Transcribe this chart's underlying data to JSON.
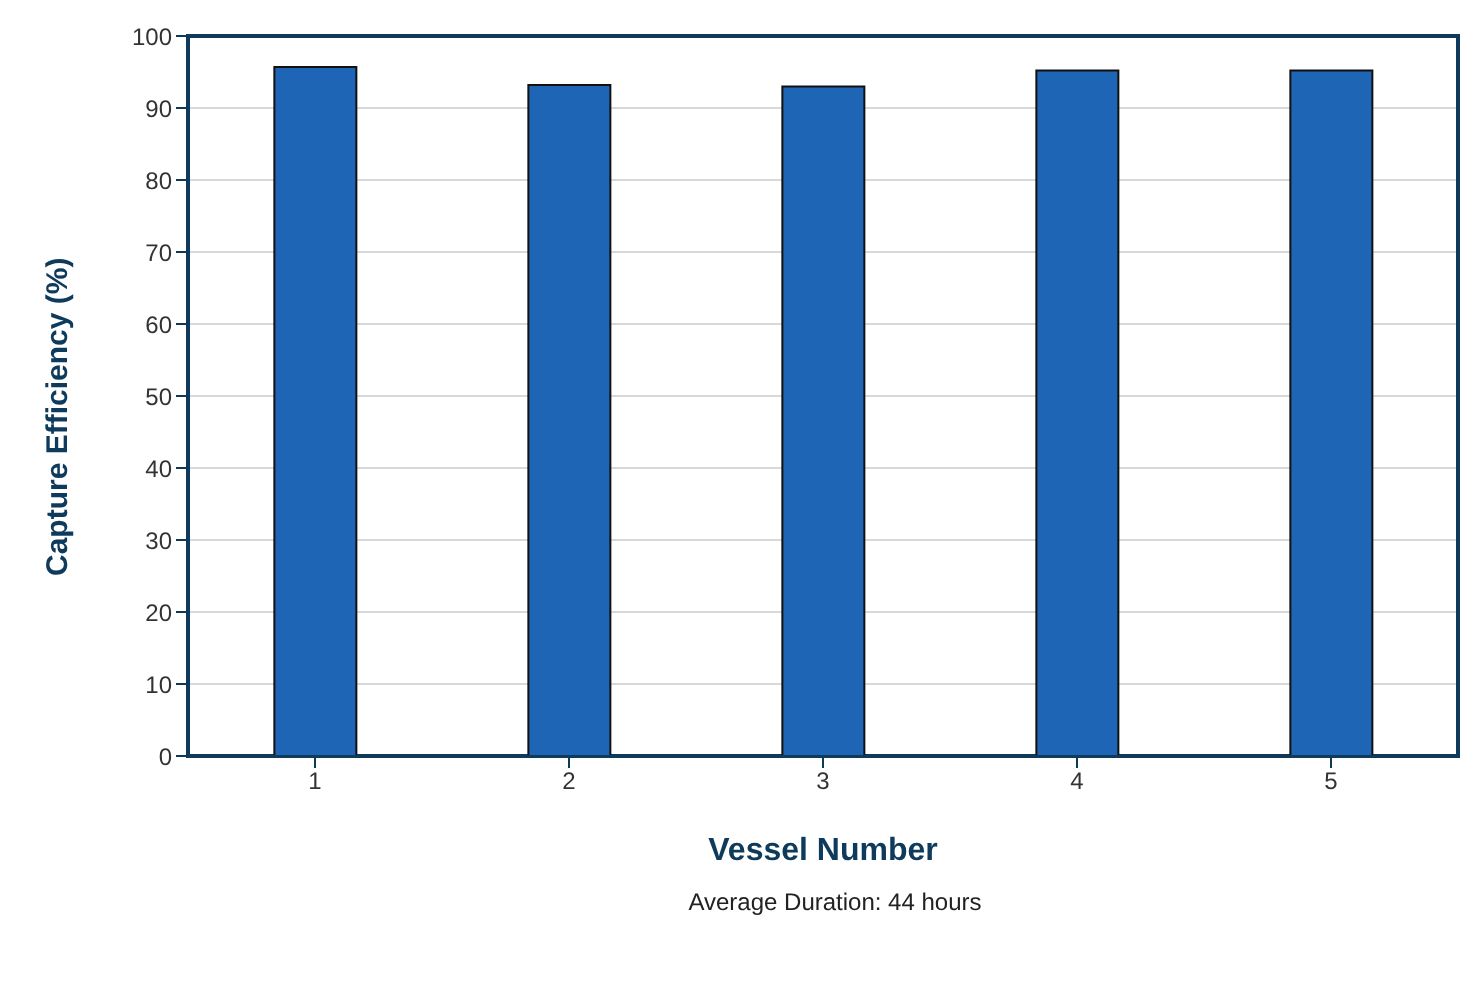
{
  "chart_data": {
    "type": "bar",
    "xlabel": "Vessel Number",
    "ylabel": "Capture Efficiency (%)",
    "annotations": [
      "Average Duration: 44 hours"
    ],
    "categories": [
      "1",
      "2",
      "3",
      "4",
      "5"
    ],
    "values": [
      95.7,
      93.2,
      93.0,
      95.2,
      95.2
    ],
    "color": "#1f65b5",
    "ylim": [
      0,
      100
    ],
    "yticks": [
      0,
      10,
      20,
      30,
      40,
      50,
      60,
      70,
      80,
      90,
      100
    ],
    "grid": "y"
  }
}
